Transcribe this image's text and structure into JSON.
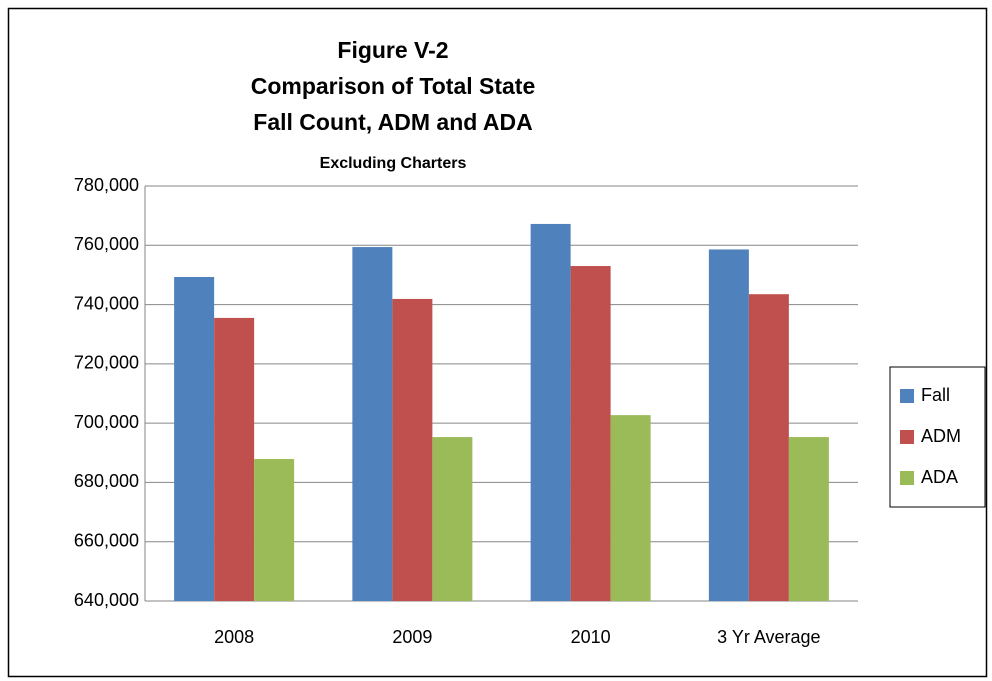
{
  "chart_data": {
    "type": "bar",
    "title": [
      "Figure V-2",
      "Comparison of Total State",
      "Fall Count, ADM and ADA"
    ],
    "subtitle": "Excluding Charters",
    "categories": [
      "2008",
      "2009",
      "2010",
      "3 Yr Average"
    ],
    "series": [
      {
        "name": "Fall",
        "color": "#4f81bd",
        "values": [
          749300,
          759400,
          767200,
          758600
        ]
      },
      {
        "name": "ADM",
        "color": "#c0504d",
        "values": [
          735500,
          741900,
          753000,
          743500
        ]
      },
      {
        "name": "ADA",
        "color": "#9bbb59",
        "values": [
          687900,
          695300,
          702700,
          695300
        ]
      }
    ],
    "ylim": [
      640000,
      780000
    ],
    "yticks": [
      {
        "value": 640000,
        "label": "640,000"
      },
      {
        "value": 660000,
        "label": "660,000"
      },
      {
        "value": 680000,
        "label": "680,000"
      },
      {
        "value": 700000,
        "label": "700,000"
      },
      {
        "value": 720000,
        "label": "720,000"
      },
      {
        "value": 740000,
        "label": "740,000"
      },
      {
        "value": 760000,
        "label": "760,000"
      },
      {
        "value": 780000,
        "label": "780,000"
      }
    ],
    "grid": true,
    "legend": "right"
  }
}
